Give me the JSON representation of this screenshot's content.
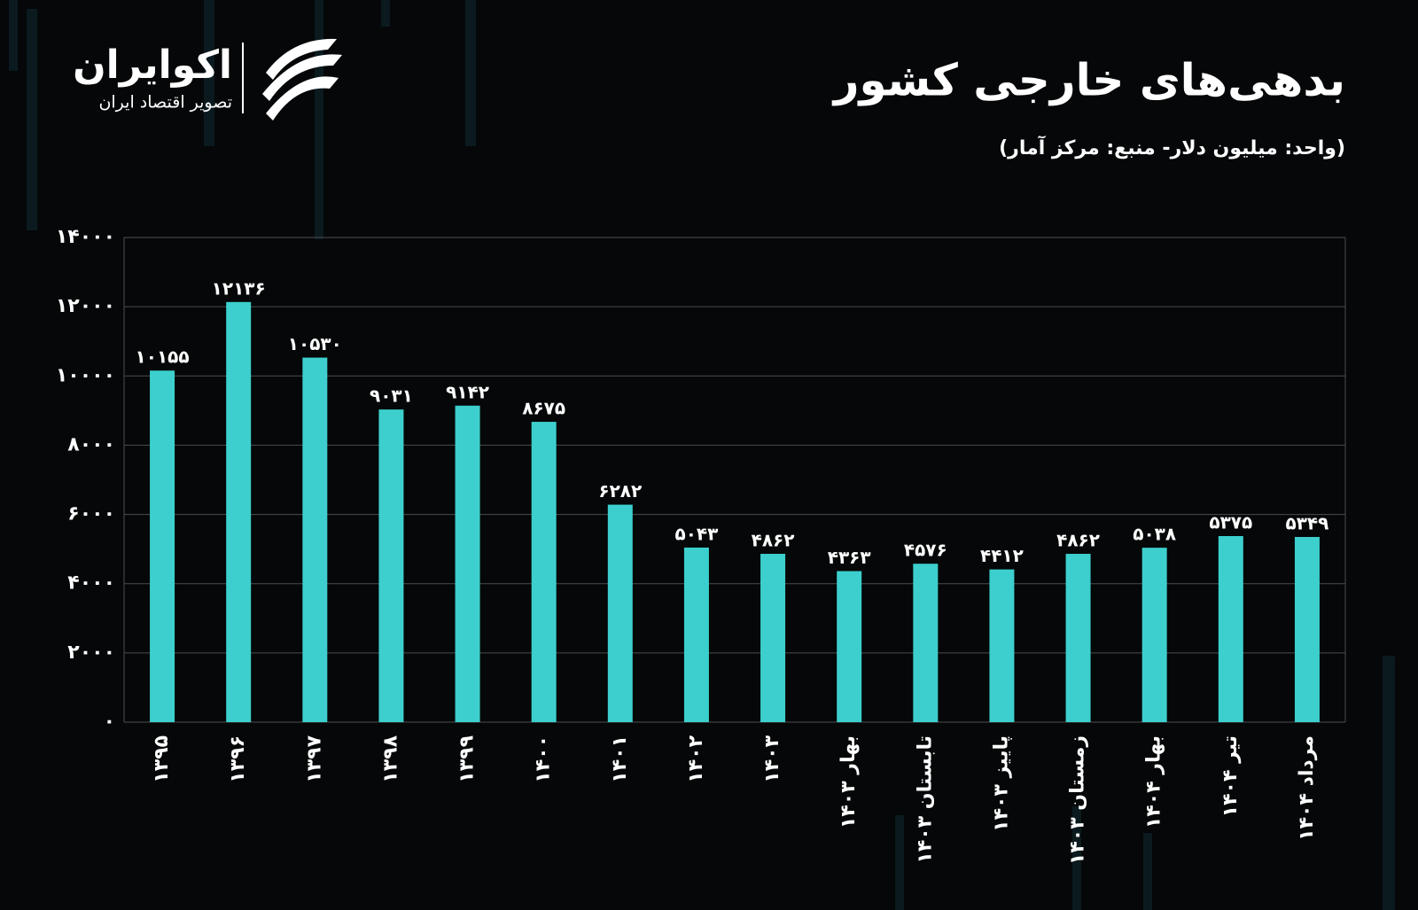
{
  "logo": {
    "name": "اکوایران",
    "tagline": "تصویر اقتصاد ایران"
  },
  "chart_data": {
    "type": "bar",
    "title": "بدهی‌های خارجی کشور",
    "subtitle": "(واحد: میلیون دلار- منبع: مرکز آمار)",
    "categories": [
      "۱۳۹۵",
      "۱۳۹۶",
      "۱۳۹۷",
      "۱۳۹۸",
      "۱۳۹۹",
      "۱۴۰۰",
      "۱۴۰۱",
      "۱۴۰۲",
      "۱۴۰۳",
      "بهار ۱۴۰۳",
      "تابستان ۱۴۰۳",
      "پاییز ۱۴۰۳",
      "زمستان ۱۴۰۳",
      "بهار ۱۴۰۴",
      "تیر ۱۴۰۴",
      "مرداد ۱۴۰۴"
    ],
    "values": [
      10155,
      12136,
      10530,
      9031,
      9142,
      8675,
      6282,
      5043,
      4862,
      4363,
      4576,
      4412,
      4862,
      5038,
      5375,
      5349
    ],
    "value_labels": [
      "۱۰۱۵۵",
      "۱۲۱۳۶",
      "۱۰۵۳۰",
      "۹۰۳۱",
      "۹۱۴۲",
      "۸۶۷۵",
      "۶۲۸۲",
      "۵۰۴۳",
      "۴۸۶۲",
      "۴۳۶۳",
      "۴۵۷۶",
      "۴۴۱۲",
      "۴۸۶۲",
      "۵۰۳۸",
      "۵۳۷۵",
      "۵۳۴۹"
    ],
    "color": "#3ccfcd",
    "ylim": [
      0,
      14000
    ],
    "yticks": [
      {
        "value": 0,
        "label": "۰"
      },
      {
        "value": 2000,
        "label": "۲۰۰۰"
      },
      {
        "value": 4000,
        "label": "۴۰۰۰"
      },
      {
        "value": 6000,
        "label": "۶۰۰۰"
      },
      {
        "value": 8000,
        "label": "۸۰۰۰"
      },
      {
        "value": 10000,
        "label": "۱۰۰۰۰"
      },
      {
        "value": 12000,
        "label": "۱۲۰۰۰"
      },
      {
        "value": 14000,
        "label": "۱۴۰۰۰"
      }
    ],
    "grid": true
  }
}
